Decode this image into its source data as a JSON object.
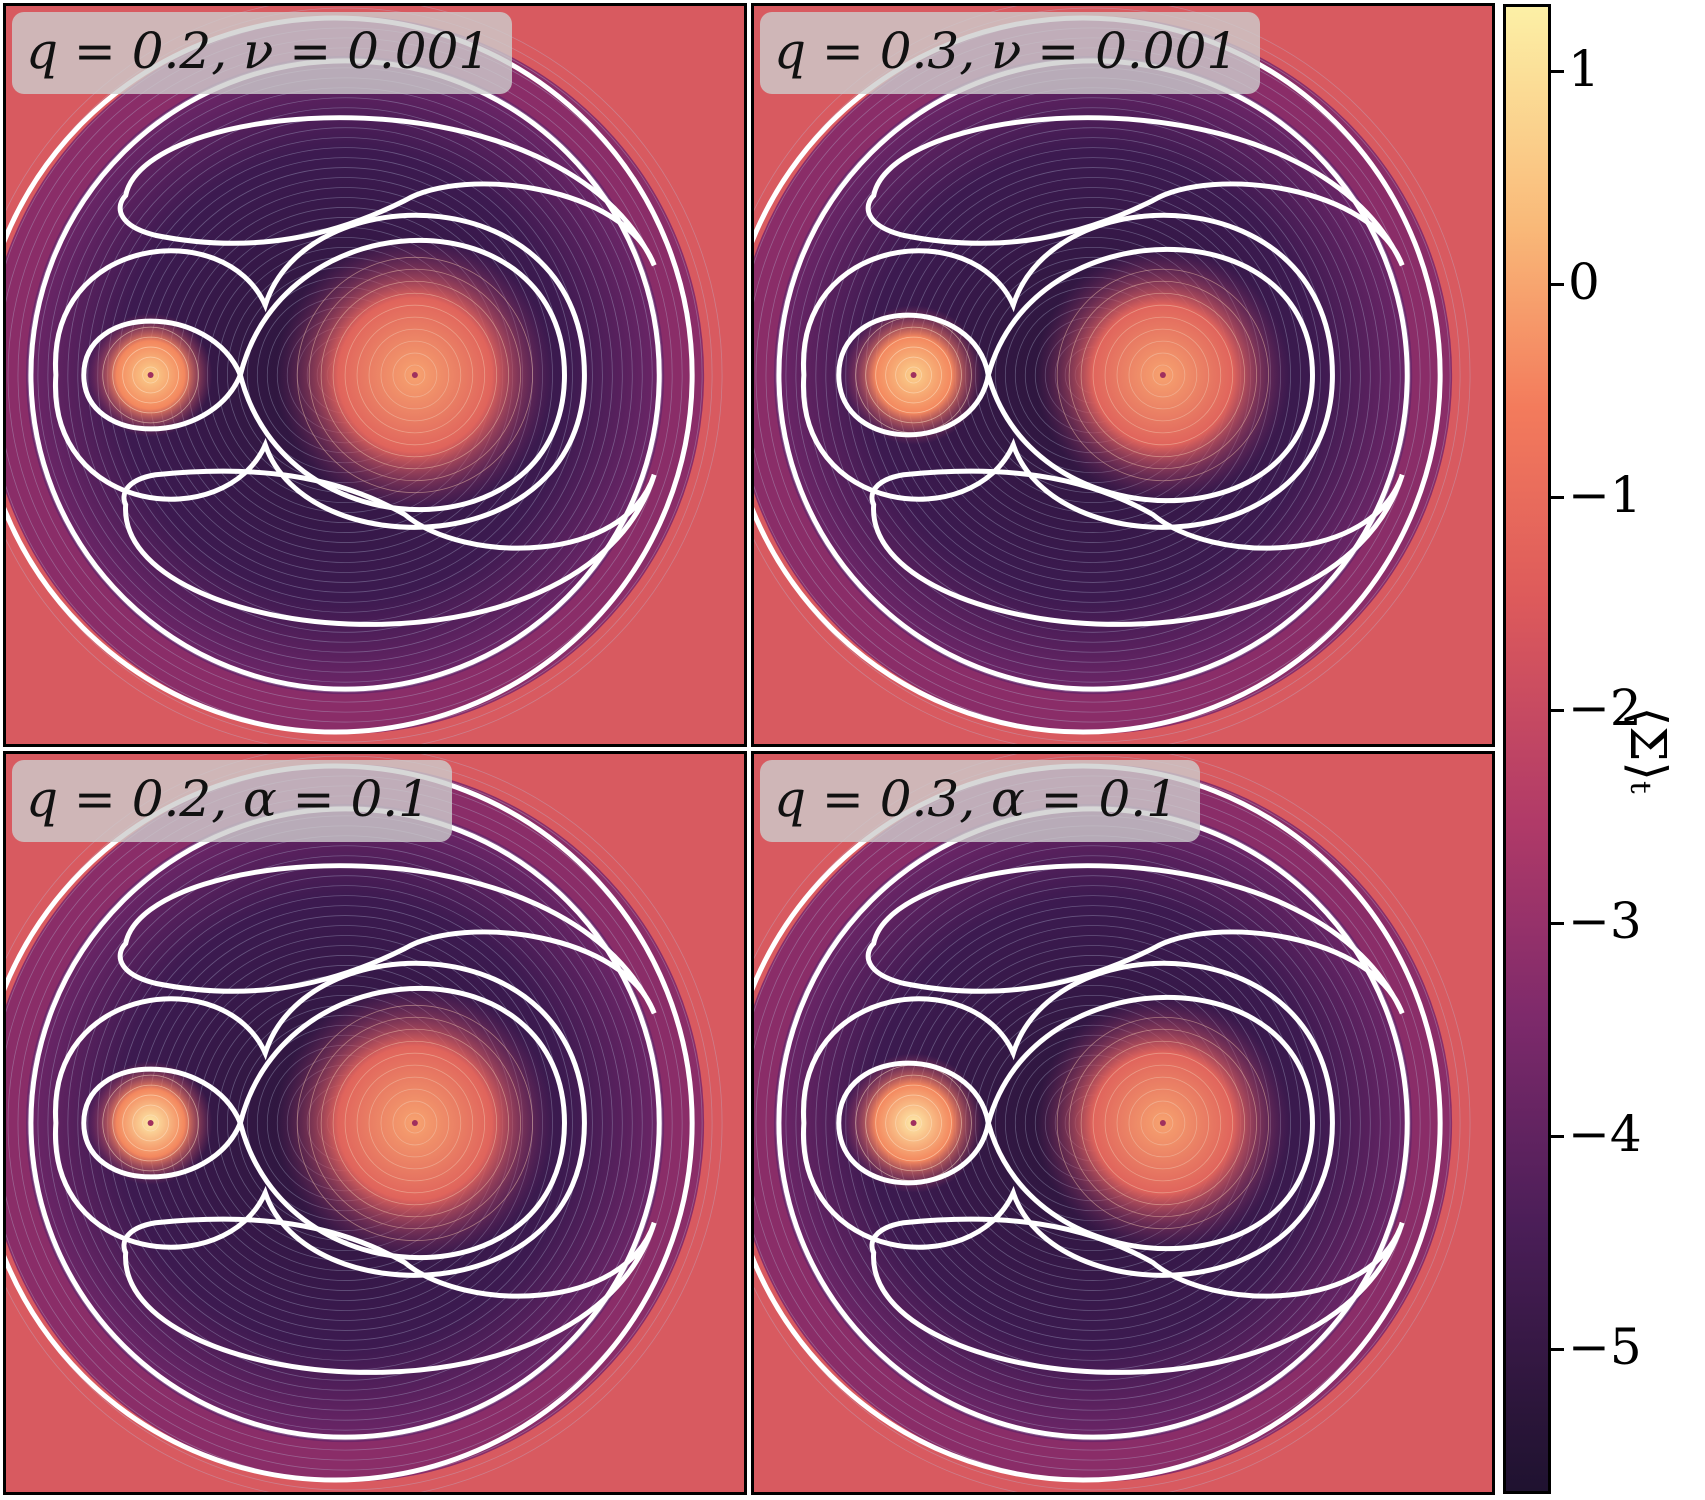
{
  "panels": [
    {
      "label": "q = 0.2,  ν = 0.001",
      "q": 0.2
    },
    {
      "label": "q = 0.3,  ν = 0.001",
      "q": 0.3
    },
    {
      "label": "q = 0.2,  α = 0.1",
      "q": 0.2
    },
    {
      "label": "q = 0.3,  α = 0.1",
      "q": 0.3
    }
  ],
  "colorbar": {
    "label": "⟨Σ⟩ₜ",
    "ticks": [
      "1",
      "0",
      "−1",
      "−2",
      "−3",
      "−4",
      "−5"
    ],
    "range": [
      -5.7,
      1.3
    ],
    "colormap": "magma"
  },
  "colors": {
    "background_low": "#2a1539",
    "background_high": "#d85a60",
    "contour": "#ffffff",
    "streamline": "#b8c4dc"
  }
}
